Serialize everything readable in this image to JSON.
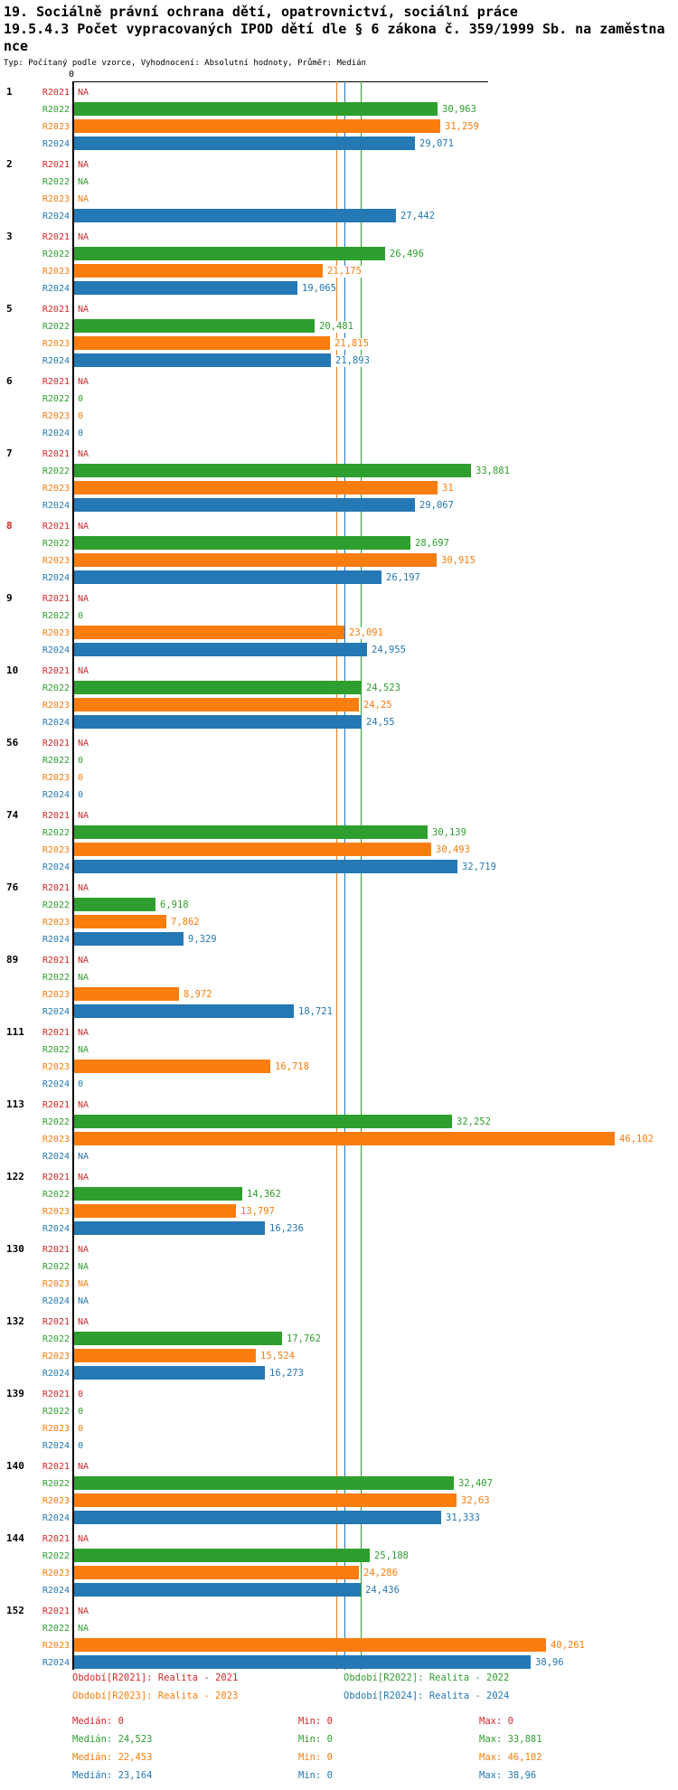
{
  "header": {
    "title_line1": "19. Sociálně právní ochrana dětí, opatrovnictví, sociální práce",
    "title_line2": "19.5.4.3 Počet vypracovaných IPOD dětí dle § 6 zákona č. 359/1999 Sb. na zaměstna",
    "title_line3": "nce",
    "subtitle": "Typ: Počítaný podle vzorce, Vyhodnocení: Absolutní hodnoty, Průměr: Medián"
  },
  "colors": {
    "R2021": "#d62728",
    "R2022": "#2e9e2e",
    "R2023": "#fb7d0e",
    "R2024": "#2478b4",
    "axis": "#000000",
    "group_label": "#000000",
    "group_highlight": "#d62728"
  },
  "chart_data": {
    "type": "bar",
    "orientation": "horizontal",
    "value_axis": {
      "zero_label": "0",
      "min": 0,
      "max_plotted": 46.102,
      "grid": false
    },
    "series_names": [
      "R2021",
      "R2022",
      "R2023",
      "R2024"
    ],
    "median_lines": [
      {
        "series": "R2023",
        "value": 22.453
      },
      {
        "series": "R2024",
        "value": 23.164
      },
      {
        "series": "R2022",
        "value": 24.523
      }
    ],
    "groups": [
      {
        "id": "1",
        "highlight": false,
        "rows": [
          {
            "year": "R2021",
            "display": "NA",
            "value": null
          },
          {
            "year": "R2022",
            "display": "30,963",
            "value": 30.963
          },
          {
            "year": "R2023",
            "display": "31,259",
            "value": 31.259
          },
          {
            "year": "R2024",
            "display": "29,071",
            "value": 29.071
          }
        ]
      },
      {
        "id": "2",
        "highlight": false,
        "rows": [
          {
            "year": "R2021",
            "display": "NA",
            "value": null
          },
          {
            "year": "R2022",
            "display": "NA",
            "value": null
          },
          {
            "year": "R2023",
            "display": "NA",
            "value": null
          },
          {
            "year": "R2024",
            "display": "27,442",
            "value": 27.442
          }
        ]
      },
      {
        "id": "3",
        "highlight": false,
        "rows": [
          {
            "year": "R2021",
            "display": "NA",
            "value": null
          },
          {
            "year": "R2022",
            "display": "26,496",
            "value": 26.496
          },
          {
            "year": "R2023",
            "display": "21,175",
            "value": 21.175
          },
          {
            "year": "R2024",
            "display": "19,065",
            "value": 19.065
          }
        ]
      },
      {
        "id": "5",
        "highlight": false,
        "rows": [
          {
            "year": "R2021",
            "display": "NA",
            "value": null
          },
          {
            "year": "R2022",
            "display": "20,481",
            "value": 20.481
          },
          {
            "year": "R2023",
            "display": "21,815",
            "value": 21.815
          },
          {
            "year": "R2024",
            "display": "21,893",
            "value": 21.893
          }
        ]
      },
      {
        "id": "6",
        "highlight": false,
        "rows": [
          {
            "year": "R2021",
            "display": "NA",
            "value": null
          },
          {
            "year": "R2022",
            "display": "0",
            "value": 0
          },
          {
            "year": "R2023",
            "display": "0",
            "value": 0
          },
          {
            "year": "R2024",
            "display": "0",
            "value": 0
          }
        ]
      },
      {
        "id": "7",
        "highlight": false,
        "rows": [
          {
            "year": "R2021",
            "display": "NA",
            "value": null
          },
          {
            "year": "R2022",
            "display": "33,881",
            "value": 33.881
          },
          {
            "year": "R2023",
            "display": "31",
            "value": 31
          },
          {
            "year": "R2024",
            "display": "29,067",
            "value": 29.067
          }
        ]
      },
      {
        "id": "8",
        "highlight": true,
        "rows": [
          {
            "year": "R2021",
            "display": "NA",
            "value": null
          },
          {
            "year": "R2022",
            "display": "28,697",
            "value": 28.697
          },
          {
            "year": "R2023",
            "display": "30,915",
            "value": 30.915
          },
          {
            "year": "R2024",
            "display": "26,197",
            "value": 26.197
          }
        ]
      },
      {
        "id": "9",
        "highlight": false,
        "rows": [
          {
            "year": "R2021",
            "display": "NA",
            "value": null
          },
          {
            "year": "R2022",
            "display": "0",
            "value": 0
          },
          {
            "year": "R2023",
            "display": "23,091",
            "value": 23.091
          },
          {
            "year": "R2024",
            "display": "24,955",
            "value": 24.955
          }
        ]
      },
      {
        "id": "10",
        "highlight": false,
        "rows": [
          {
            "year": "R2021",
            "display": "NA",
            "value": null
          },
          {
            "year": "R2022",
            "display": "24,523",
            "value": 24.523
          },
          {
            "year": "R2023",
            "display": "24,25",
            "value": 24.25
          },
          {
            "year": "R2024",
            "display": "24,55",
            "value": 24.55
          }
        ]
      },
      {
        "id": "56",
        "highlight": false,
        "rows": [
          {
            "year": "R2021",
            "display": "NA",
            "value": null
          },
          {
            "year": "R2022",
            "display": "0",
            "value": 0
          },
          {
            "year": "R2023",
            "display": "0",
            "value": 0
          },
          {
            "year": "R2024",
            "display": "0",
            "value": 0
          }
        ]
      },
      {
        "id": "74",
        "highlight": false,
        "rows": [
          {
            "year": "R2021",
            "display": "NA",
            "value": null
          },
          {
            "year": "R2022",
            "display": "30,139",
            "value": 30.139
          },
          {
            "year": "R2023",
            "display": "30,493",
            "value": 30.493
          },
          {
            "year": "R2024",
            "display": "32,719",
            "value": 32.719
          }
        ]
      },
      {
        "id": "76",
        "highlight": false,
        "rows": [
          {
            "year": "R2021",
            "display": "NA",
            "value": null
          },
          {
            "year": "R2022",
            "display": "6,918",
            "value": 6.918
          },
          {
            "year": "R2023",
            "display": "7,862",
            "value": 7.862
          },
          {
            "year": "R2024",
            "display": "9,329",
            "value": 9.329
          }
        ]
      },
      {
        "id": "89",
        "highlight": false,
        "rows": [
          {
            "year": "R2021",
            "display": "NA",
            "value": null
          },
          {
            "year": "R2022",
            "display": "NA",
            "value": null
          },
          {
            "year": "R2023",
            "display": "8,972",
            "value": 8.972
          },
          {
            "year": "R2024",
            "display": "18,721",
            "value": 18.721
          }
        ]
      },
      {
        "id": "111",
        "highlight": false,
        "rows": [
          {
            "year": "R2021",
            "display": "NA",
            "value": null
          },
          {
            "year": "R2022",
            "display": "NA",
            "value": null
          },
          {
            "year": "R2023",
            "display": "16,718",
            "value": 16.718
          },
          {
            "year": "R2024",
            "display": "0",
            "value": 0
          }
        ]
      },
      {
        "id": "113",
        "highlight": false,
        "rows": [
          {
            "year": "R2021",
            "display": "NA",
            "value": null
          },
          {
            "year": "R2022",
            "display": "32,252",
            "value": 32.252
          },
          {
            "year": "R2023",
            "display": "46,102",
            "value": 46.102
          },
          {
            "year": "R2024",
            "display": "NA",
            "value": null
          }
        ]
      },
      {
        "id": "122",
        "highlight": false,
        "rows": [
          {
            "year": "R2021",
            "display": "NA",
            "value": null
          },
          {
            "year": "R2022",
            "display": "14,362",
            "value": 14.362
          },
          {
            "year": "R2023",
            "display": "13,797",
            "value": 13.797
          },
          {
            "year": "R2024",
            "display": "16,236",
            "value": 16.236
          }
        ]
      },
      {
        "id": "130",
        "highlight": false,
        "rows": [
          {
            "year": "R2021",
            "display": "NA",
            "value": null
          },
          {
            "year": "R2022",
            "display": "NA",
            "value": null
          },
          {
            "year": "R2023",
            "display": "NA",
            "value": null
          },
          {
            "year": "R2024",
            "display": "NA",
            "value": null
          }
        ]
      },
      {
        "id": "132",
        "highlight": false,
        "rows": [
          {
            "year": "R2021",
            "display": "NA",
            "value": null
          },
          {
            "year": "R2022",
            "display": "17,762",
            "value": 17.762
          },
          {
            "year": "R2023",
            "display": "15,524",
            "value": 15.524
          },
          {
            "year": "R2024",
            "display": "16,273",
            "value": 16.273
          }
        ]
      },
      {
        "id": "139",
        "highlight": false,
        "rows": [
          {
            "year": "R2021",
            "display": "0",
            "value": 0
          },
          {
            "year": "R2022",
            "display": "0",
            "value": 0
          },
          {
            "year": "R2023",
            "display": "0",
            "value": 0
          },
          {
            "year": "R2024",
            "display": "0",
            "value": 0
          }
        ]
      },
      {
        "id": "140",
        "highlight": false,
        "rows": [
          {
            "year": "R2021",
            "display": "NA",
            "value": null
          },
          {
            "year": "R2022",
            "display": "32,407",
            "value": 32.407
          },
          {
            "year": "R2023",
            "display": "32,63",
            "value": 32.63
          },
          {
            "year": "R2024",
            "display": "31,333",
            "value": 31.333
          }
        ]
      },
      {
        "id": "144",
        "highlight": false,
        "rows": [
          {
            "year": "R2021",
            "display": "NA",
            "value": null
          },
          {
            "year": "R2022",
            "display": "25,188",
            "value": 25.188
          },
          {
            "year": "R2023",
            "display": "24,286",
            "value": 24.286
          },
          {
            "year": "R2024",
            "display": "24,436",
            "value": 24.436
          }
        ]
      },
      {
        "id": "152",
        "highlight": false,
        "rows": [
          {
            "year": "R2021",
            "display": "NA",
            "value": null
          },
          {
            "year": "R2022",
            "display": "NA",
            "value": null
          },
          {
            "year": "R2023",
            "display": "40,261",
            "value": 40.261
          },
          {
            "year": "R2024",
            "display": "38,96",
            "value": 38.96
          }
        ]
      }
    ]
  },
  "legend": {
    "items": [
      {
        "series": "R2021",
        "label": "Období[R2021]: Realita - 2021"
      },
      {
        "series": "R2022",
        "label": "Období[R2022]: Realita - 2022"
      },
      {
        "series": "R2023",
        "label": "Období[R2023]: Realita - 2023"
      },
      {
        "series": "R2024",
        "label": "Období[R2024]: Realita - 2024"
      }
    ]
  },
  "stats": {
    "median_label": "Medián",
    "min_label": "Min",
    "max_label": "Max",
    "rows": [
      {
        "series": "R2021",
        "median": "0",
        "min": "0",
        "max": "0"
      },
      {
        "series": "R2022",
        "median": "24,523",
        "min": "0",
        "max": "33,881"
      },
      {
        "series": "R2023",
        "median": "22,453",
        "min": "0",
        "max": "46,102"
      },
      {
        "series": "R2024",
        "median": "23,164",
        "min": "0",
        "max": "38,96"
      }
    ]
  }
}
